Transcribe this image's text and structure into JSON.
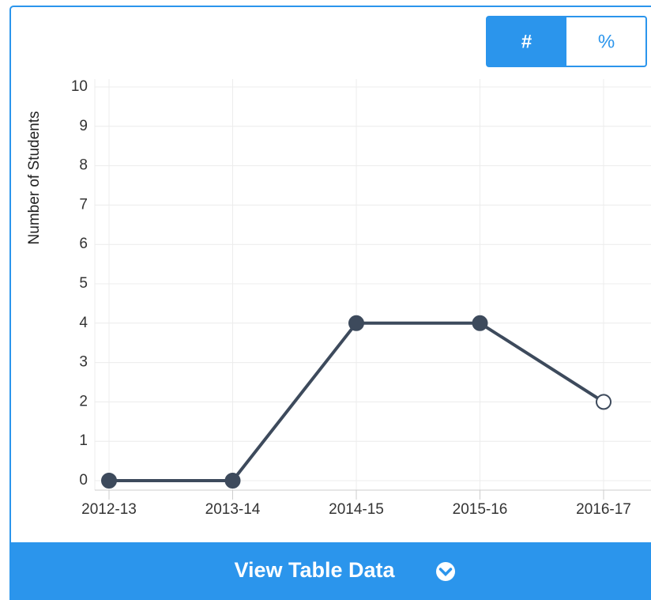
{
  "chart_data": {
    "type": "line",
    "y_label": "Number of Students",
    "categories": [
      "2012-13",
      "2013-14",
      "2014-15",
      "2015-16",
      "2016-17"
    ],
    "values": [
      0,
      0,
      4,
      4,
      2
    ],
    "hollow": [
      false,
      false,
      false,
      false,
      true
    ],
    "color": "#3d4a5c",
    "ylim": [
      0,
      10
    ],
    "yticks": [
      0,
      1,
      2,
      3,
      4,
      5,
      6,
      7,
      8,
      9,
      10
    ],
    "grid": true
  },
  "toggle": {
    "options": [
      "#",
      "%"
    ],
    "active": 0
  },
  "button": {
    "label": "View Table Data"
  }
}
